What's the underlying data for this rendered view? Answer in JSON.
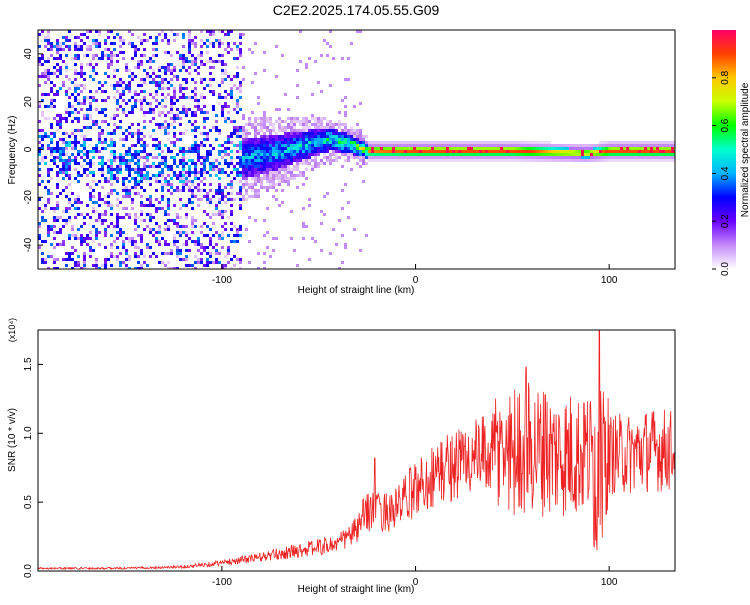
{
  "title": "C2E2.2025.174.05.55.G09",
  "chart_data": [
    {
      "type": "heatmap",
      "xlabel": "Height of straight line (km)",
      "ylabel": "Frequency (Hz)",
      "xlim": [
        -195,
        134
      ],
      "ylim": [
        -50,
        50
      ],
      "xticks": [
        -100,
        0,
        100
      ],
      "yticks": [
        -40,
        -20,
        0,
        20,
        40
      ],
      "colorbar": {
        "label": "Normalized spectral amplitude",
        "range": [
          0.0,
          1.0
        ],
        "ticks": [
          "0.0",
          "0.2",
          "0.4",
          "0.6",
          "0.8"
        ],
        "colors": [
          "#ffffff",
          "#c58af9",
          "#6a00ff",
          "#0000ff",
          "#00b4ff",
          "#00ffcc",
          "#00ff00",
          "#c8ff00",
          "#ffc800",
          "#ff4000",
          "#ff0066"
        ]
      },
      "description_points": {
        "x_centerline": [
          -195,
          -150,
          -120,
          -100,
          -80,
          -60,
          -45,
          -35,
          -25,
          0,
          50,
          88,
          100,
          134
        ],
        "centroid_hz": [
          0,
          -5,
          -6,
          -4,
          -2,
          2,
          5,
          3,
          0,
          0,
          0,
          -1,
          0,
          0
        ],
        "peak_amplitude": [
          0.3,
          0.35,
          0.4,
          0.45,
          0.5,
          0.55,
          0.6,
          0.7,
          0.9,
          0.95,
          0.95,
          0.8,
          0.95,
          0.95
        ]
      }
    },
    {
      "type": "line",
      "xlabel": "Height of straight line (km)",
      "ylabel": "SNR (10 * v/v)",
      "yunit": "(x10⁴)",
      "xlim": [
        -195,
        134
      ],
      "ylim": [
        0,
        1.75
      ],
      "xticks": [
        -100,
        0,
        100
      ],
      "yticks": [
        0.0,
        0.5,
        1.0,
        1.5
      ],
      "color": "#ee2222",
      "envelope_x": [
        -195,
        -150,
        -120,
        -100,
        -80,
        -60,
        -40,
        -30,
        -25,
        -20,
        -10,
        0,
        10,
        20,
        30,
        40,
        50,
        60,
        70,
        80,
        90,
        95,
        100,
        110,
        120,
        134
      ],
      "envelope_mean": [
        0.02,
        0.02,
        0.03,
        0.06,
        0.1,
        0.15,
        0.2,
        0.3,
        0.45,
        0.42,
        0.45,
        0.6,
        0.7,
        0.78,
        0.82,
        0.85,
        0.88,
        0.9,
        0.85,
        0.85,
        0.85,
        0.85,
        0.85,
        0.85,
        0.88,
        0.88
      ],
      "peaks": [
        {
          "x": 57,
          "y": 1.48
        },
        {
          "x": 67,
          "y": 1.28
        },
        {
          "x": 95,
          "y": 1.75
        },
        {
          "x": 87,
          "y": 1.22
        },
        {
          "x": -21,
          "y": 0.82
        }
      ]
    }
  ]
}
